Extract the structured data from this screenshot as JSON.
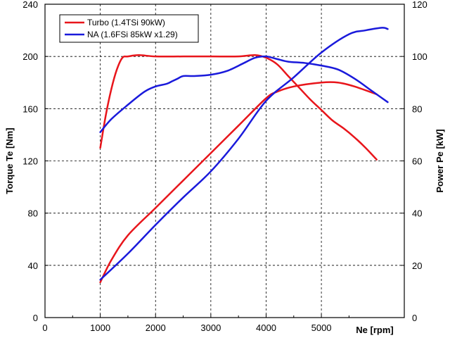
{
  "chart_data": {
    "type": "line",
    "title": "",
    "xlabel": "Ne [rpm]",
    "ylabel_left": "Torque Te [Nm]",
    "ylabel_right": "Power Pe [kW]",
    "xlim": [
      0,
      6500
    ],
    "ylim_left": [
      0,
      240
    ],
    "ylim_right": [
      0,
      120
    ],
    "x_ticks": [
      0,
      1000,
      2000,
      3000,
      4000,
      5000
    ],
    "y_left_ticks": [
      0,
      40,
      80,
      120,
      160,
      200,
      240
    ],
    "y_right_ticks": [
      0,
      20,
      40,
      60,
      80,
      100,
      120
    ],
    "grid": true,
    "legend_position": "top-left",
    "series": [
      {
        "name": "Turbo (1.4TSi 90kW)",
        "color": "#e8151b",
        "axis": "left",
        "quantity": "torque",
        "points": [
          [
            1000,
            130
          ],
          [
            1100,
            155
          ],
          [
            1200,
            175
          ],
          [
            1300,
            190
          ],
          [
            1400,
            199
          ],
          [
            1500,
            200
          ],
          [
            1700,
            201
          ],
          [
            2000,
            200
          ],
          [
            2500,
            200
          ],
          [
            3000,
            200
          ],
          [
            3500,
            200
          ],
          [
            3800,
            201
          ],
          [
            4000,
            199
          ],
          [
            4200,
            194
          ],
          [
            4400,
            185
          ],
          [
            4600,
            176
          ],
          [
            4800,
            167
          ],
          [
            5000,
            159
          ],
          [
            5200,
            151
          ],
          [
            5400,
            145
          ],
          [
            5600,
            138
          ],
          [
            5800,
            130
          ],
          [
            6000,
            121
          ]
        ]
      },
      {
        "name": "Turbo (1.4TSi 90kW)",
        "color": "#e8151b",
        "axis": "right",
        "quantity": "power",
        "points": [
          [
            1000,
            13.5
          ],
          [
            1200,
            22
          ],
          [
            1500,
            31.5
          ],
          [
            2000,
            42
          ],
          [
            2500,
            52.5
          ],
          [
            3000,
            63
          ],
          [
            3500,
            73.5
          ],
          [
            4000,
            84
          ],
          [
            4200,
            86.5
          ],
          [
            4500,
            88.5
          ],
          [
            5000,
            90
          ],
          [
            5300,
            90
          ],
          [
            5600,
            88.5
          ],
          [
            6000,
            85.5
          ]
        ]
      },
      {
        "name": "NA (1.6FSi 85kW x1.29)",
        "color": "#1a1adb",
        "axis": "left",
        "quantity": "torque",
        "points": [
          [
            1000,
            142
          ],
          [
            1200,
            152
          ],
          [
            1500,
            163
          ],
          [
            1800,
            173
          ],
          [
            2000,
            177
          ],
          [
            2200,
            179
          ],
          [
            2300,
            181
          ],
          [
            2400,
            183
          ],
          [
            2500,
            185
          ],
          [
            2700,
            185
          ],
          [
            3000,
            186
          ],
          [
            3300,
            189
          ],
          [
            3600,
            195
          ],
          [
            3800,
            199
          ],
          [
            4000,
            200
          ],
          [
            4200,
            198
          ],
          [
            4400,
            196
          ],
          [
            4700,
            195
          ],
          [
            5000,
            193
          ],
          [
            5300,
            190
          ],
          [
            5600,
            183
          ],
          [
            5900,
            174
          ],
          [
            6100,
            168
          ],
          [
            6200,
            165
          ]
        ]
      },
      {
        "name": "NA (1.6FSi 85kW x1.29)",
        "color": "#1a1adb",
        "axis": "right",
        "quantity": "power",
        "points": [
          [
            1000,
            14.5
          ],
          [
            1500,
            24.5
          ],
          [
            2000,
            35.5
          ],
          [
            2500,
            46
          ],
          [
            3000,
            56
          ],
          [
            3500,
            68.5
          ],
          [
            4000,
            83
          ],
          [
            4500,
            92
          ],
          [
            5000,
            101.5
          ],
          [
            5500,
            108.5
          ],
          [
            5800,
            110
          ],
          [
            6100,
            111
          ],
          [
            6200,
            110.5
          ]
        ]
      }
    ]
  }
}
